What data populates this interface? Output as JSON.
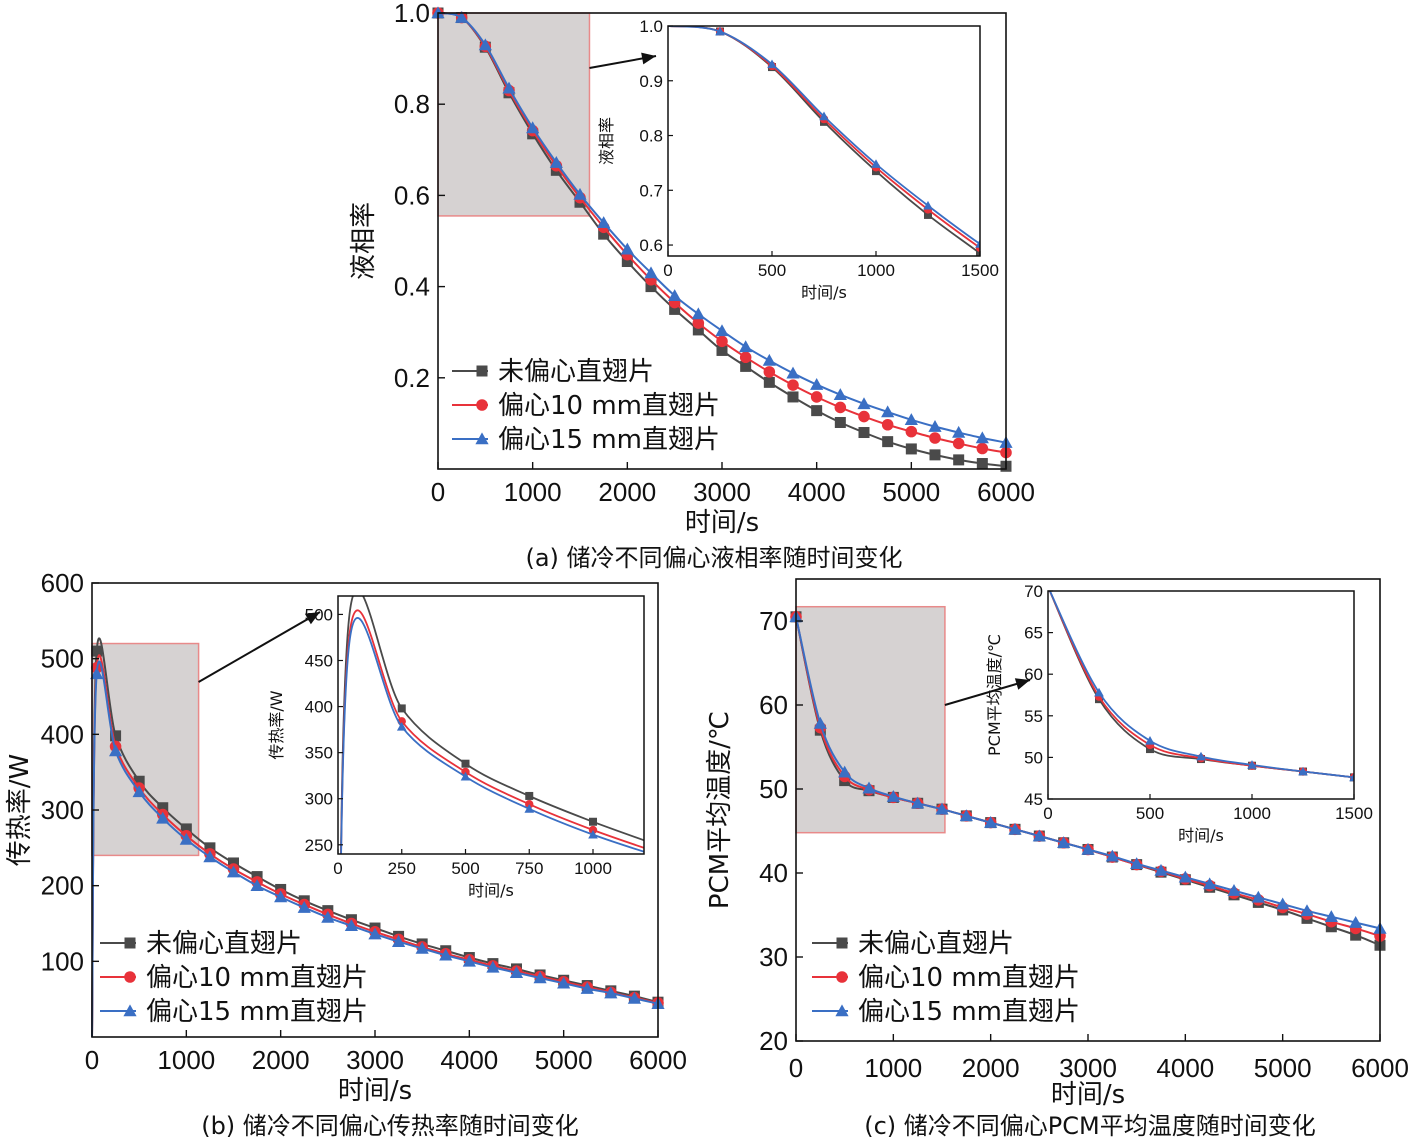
{
  "colors": {
    "s1": "#4a4a4a",
    "s2": "#e8323a",
    "s3": "#3a6fc4",
    "zoom_fill": "#d6d2d2",
    "zoom_edge": "#e88a8a"
  },
  "chart_data": [
    {
      "id": "a",
      "type": "line",
      "caption": "(a) 储冷不同偏心液相率随时间变化",
      "xlabel": "时间/s",
      "ylabel": "液相率",
      "xlim": [
        0,
        6000
      ],
      "ylim": [
        0,
        1.0
      ],
      "xticks": [
        0,
        1000,
        2000,
        3000,
        4000,
        5000,
        6000
      ],
      "yticks": [
        0.2,
        0.4,
        0.6,
        0.8,
        1.0
      ],
      "x": [
        0,
        250,
        500,
        750,
        1000,
        1250,
        1500,
        1750,
        2000,
        2250,
        2500,
        2750,
        3000,
        3250,
        3500,
        3750,
        4000,
        4250,
        4500,
        4750,
        5000,
        5250,
        5500,
        5750,
        6000
      ],
      "series": [
        {
          "name": "未偏心直翅片",
          "marker": "square",
          "color": "#4a4a4a",
          "values": [
            1.0,
            0.99,
            0.925,
            0.825,
            0.735,
            0.655,
            0.585,
            0.515,
            0.455,
            0.4,
            0.35,
            0.305,
            0.26,
            0.225,
            0.19,
            0.158,
            0.128,
            0.102,
            0.08,
            0.06,
            0.044,
            0.031,
            0.02,
            0.012,
            0.006
          ]
        },
        {
          "name": "偏心10 mm直翅片",
          "marker": "circle",
          "color": "#e8323a",
          "values": [
            1.0,
            0.99,
            0.927,
            0.83,
            0.742,
            0.665,
            0.595,
            0.53,
            0.47,
            0.415,
            0.365,
            0.32,
            0.28,
            0.245,
            0.213,
            0.184,
            0.158,
            0.135,
            0.115,
            0.097,
            0.082,
            0.068,
            0.056,
            0.045,
            0.036
          ]
        },
        {
          "name": "偏心15 mm直翅片",
          "marker": "triangle",
          "color": "#3a6fc4",
          "values": [
            1.0,
            0.99,
            0.93,
            0.835,
            0.748,
            0.672,
            0.602,
            0.54,
            0.482,
            0.43,
            0.38,
            0.34,
            0.303,
            0.268,
            0.238,
            0.21,
            0.185,
            0.163,
            0.143,
            0.125,
            0.108,
            0.093,
            0.08,
            0.068,
            0.058
          ]
        }
      ],
      "inset": {
        "xlabel": "时间/s",
        "ylabel": "液相率",
        "xlim": [
          0,
          1500
        ],
        "ylim": [
          0.58,
          1.0
        ],
        "xticks": [
          0,
          500,
          1000,
          1500
        ],
        "yticks": [
          0.6,
          0.7,
          0.8,
          0.9,
          1.0
        ]
      }
    },
    {
      "id": "b",
      "type": "line",
      "caption": "(b) 储冷不同偏心传热率随时间变化",
      "xlabel": "时间/s",
      "ylabel": "传热率/W",
      "xlim": [
        0,
        6000
      ],
      "ylim": [
        0,
        600
      ],
      "xticks": [
        0,
        1000,
        2000,
        3000,
        4000,
        5000,
        6000
      ],
      "yticks": [
        100,
        200,
        300,
        400,
        500,
        600
      ],
      "x": [
        0,
        50,
        250,
        500,
        750,
        1000,
        1250,
        1500,
        1750,
        2000,
        2250,
        2500,
        2750,
        3000,
        3250,
        3500,
        3750,
        4000,
        4250,
        4500,
        4750,
        5000,
        5250,
        5500,
        5750,
        6000
      ],
      "series": [
        {
          "name": "未偏心直翅片",
          "marker": "square",
          "color": "#4a4a4a",
          "values": [
            0,
            510,
            398,
            338,
            303,
            275,
            250,
            230,
            212,
            195,
            180,
            167,
            155,
            144,
            133,
            123,
            114,
            105,
            97,
            90,
            82,
            75,
            68,
            61,
            54,
            46
          ]
        },
        {
          "name": "偏心10 mm直翅片",
          "marker": "circle",
          "color": "#e8323a",
          "values": [
            0,
            488,
            384,
            329,
            294,
            266,
            242,
            222,
            205,
            189,
            175,
            162,
            150,
            139,
            129,
            119,
            110,
            102,
            94,
            87,
            80,
            73,
            66,
            59,
            52,
            45
          ]
        },
        {
          "name": "偏心15 mm直翅片",
          "marker": "triangle",
          "color": "#3a6fc4",
          "values": [
            0,
            480,
            378,
            324,
            289,
            261,
            238,
            218,
            200,
            185,
            171,
            158,
            147,
            136,
            126,
            117,
            108,
            100,
            92,
            85,
            78,
            71,
            64,
            58,
            51,
            44
          ]
        }
      ],
      "inset": {
        "xlabel": "时间/s",
        "ylabel": "传热率/W",
        "xlim": [
          0,
          1200
        ],
        "ylim": [
          240,
          520
        ],
        "xticks": [
          0,
          250,
          500,
          750,
          1000
        ],
        "yticks": [
          250,
          300,
          350,
          400,
          450,
          500
        ]
      }
    },
    {
      "id": "c",
      "type": "line",
      "caption": "(c) 储冷不同偏心PCM平均温度随时间变化",
      "xlabel": "时间/s",
      "ylabel": "PCM平均温度/℃",
      "xlim": [
        0,
        6000
      ],
      "ylim": [
        20,
        75
      ],
      "xticks": [
        0,
        1000,
        2000,
        3000,
        4000,
        5000,
        6000
      ],
      "yticks": [
        20,
        30,
        40,
        50,
        60,
        70
      ],
      "x": [
        0,
        250,
        500,
        750,
        1000,
        1250,
        1500,
        1750,
        2000,
        2250,
        2500,
        2750,
        3000,
        3250,
        3500,
        3750,
        4000,
        4250,
        4500,
        4750,
        5000,
        5250,
        5500,
        5750,
        6000
      ],
      "series": [
        {
          "name": "未偏心直翅片",
          "marker": "square",
          "color": "#4a4a4a",
          "values": [
            70.5,
            57.0,
            51.0,
            49.8,
            49.0,
            48.3,
            47.6,
            46.8,
            46.0,
            45.2,
            44.4,
            43.6,
            42.8,
            41.9,
            41.0,
            40.1,
            39.2,
            38.3,
            37.4,
            36.5,
            35.6,
            34.6,
            33.6,
            32.6,
            31.4
          ]
        },
        {
          "name": "偏心10 mm直翅片",
          "marker": "circle",
          "color": "#e8323a",
          "values": [
            70.5,
            57.3,
            51.5,
            49.9,
            49.0,
            48.3,
            47.6,
            46.8,
            46.0,
            45.2,
            44.4,
            43.6,
            42.8,
            41.9,
            41.0,
            40.2,
            39.3,
            38.5,
            37.6,
            36.8,
            35.9,
            35.1,
            34.2,
            33.4,
            32.5
          ]
        },
        {
          "name": "偏心15 mm直翅片",
          "marker": "triangle",
          "color": "#3a6fc4",
          "values": [
            70.5,
            57.8,
            52.0,
            50.1,
            49.1,
            48.3,
            47.6,
            46.8,
            46.0,
            45.2,
            44.4,
            43.6,
            42.8,
            42.0,
            41.1,
            40.3,
            39.5,
            38.7,
            37.9,
            37.1,
            36.3,
            35.5,
            34.8,
            34.1,
            33.4
          ]
        }
      ],
      "inset": {
        "xlabel": "时间/s",
        "ylabel": "PCM平均温度/℃",
        "xlim": [
          0,
          1500
        ],
        "ylim": [
          45,
          70
        ],
        "xticks": [
          0,
          500,
          1000,
          1500
        ],
        "yticks": [
          45,
          50,
          55,
          60,
          65,
          70
        ]
      }
    }
  ]
}
